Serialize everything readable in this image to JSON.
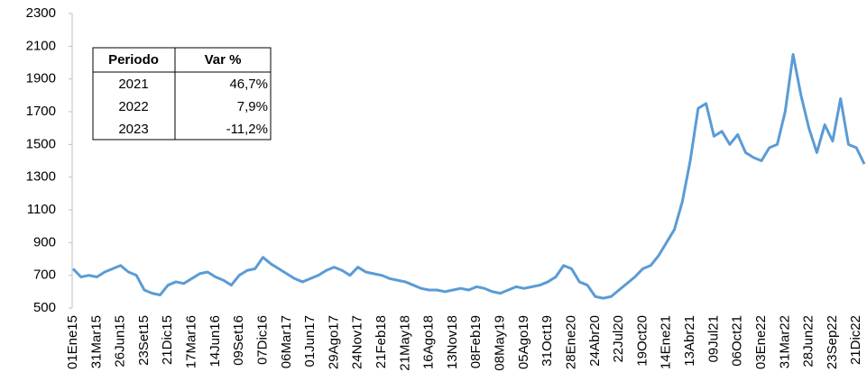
{
  "chart_data": {
    "type": "line",
    "categories": [
      "01Ene15",
      null,
      null,
      "31Mar15",
      null,
      null,
      "26Jun15",
      null,
      null,
      "23Set15",
      null,
      null,
      "21Dic15",
      null,
      null,
      "17Mar16",
      null,
      null,
      "14Jun16",
      null,
      null,
      "09Set16",
      null,
      null,
      "07Dic16",
      null,
      null,
      "06Mar17",
      null,
      null,
      "01Jun17",
      null,
      null,
      "29Ago17",
      null,
      null,
      "24Nov17",
      null,
      null,
      "21Feb18",
      null,
      null,
      "21May18",
      null,
      null,
      "16Ago18",
      null,
      null,
      "13Nov18",
      null,
      null,
      "08Feb19",
      null,
      null,
      "08May19",
      null,
      null,
      "05Ago19",
      null,
      null,
      "31Oct19",
      null,
      null,
      "28Ene20",
      null,
      null,
      "24Abr20",
      null,
      null,
      "22Jul20",
      null,
      null,
      "19Oct20",
      null,
      null,
      "14Ene21",
      null,
      null,
      "13Abr21",
      null,
      null,
      "09Jul21",
      null,
      null,
      "06Oct21",
      null,
      null,
      "03Ene22",
      null,
      null,
      "31Mar22",
      null,
      null,
      "28Jun22",
      null,
      null,
      "23Sep22",
      null,
      null,
      "21Dic22",
      null
    ],
    "values": [
      740,
      690,
      700,
      690,
      720,
      740,
      760,
      720,
      700,
      610,
      590,
      580,
      640,
      660,
      650,
      680,
      710,
      720,
      690,
      670,
      640,
      700,
      730,
      740,
      810,
      770,
      740,
      710,
      680,
      660,
      680,
      700,
      730,
      750,
      730,
      700,
      750,
      720,
      710,
      700,
      680,
      670,
      660,
      640,
      620,
      610,
      610,
      600,
      610,
      620,
      610,
      630,
      620,
      600,
      590,
      610,
      630,
      620,
      630,
      640,
      660,
      690,
      760,
      740,
      660,
      640,
      570,
      560,
      570,
      610,
      650,
      690,
      740,
      760,
      820,
      900,
      980,
      1150,
      1400,
      1720,
      1750,
      1550,
      1580,
      1500,
      1560,
      1450,
      1420,
      1400,
      1480,
      1500,
      1700,
      2050,
      1800,
      1600,
      1450,
      1620,
      1520,
      1780,
      1500,
      1480,
      1380
    ],
    "color": "#5b9bd5",
    "ylim": [
      500,
      2300
    ],
    "yticks": [
      500,
      700,
      900,
      1100,
      1300,
      1500,
      1700,
      1900,
      2100,
      2300
    ]
  },
  "table": {
    "header": [
      "Periodo",
      "Var %"
    ],
    "rows": [
      [
        "2021",
        "46,7%"
      ],
      [
        "2022",
        "7,9%"
      ],
      [
        "2023",
        "-11,2%"
      ]
    ]
  }
}
